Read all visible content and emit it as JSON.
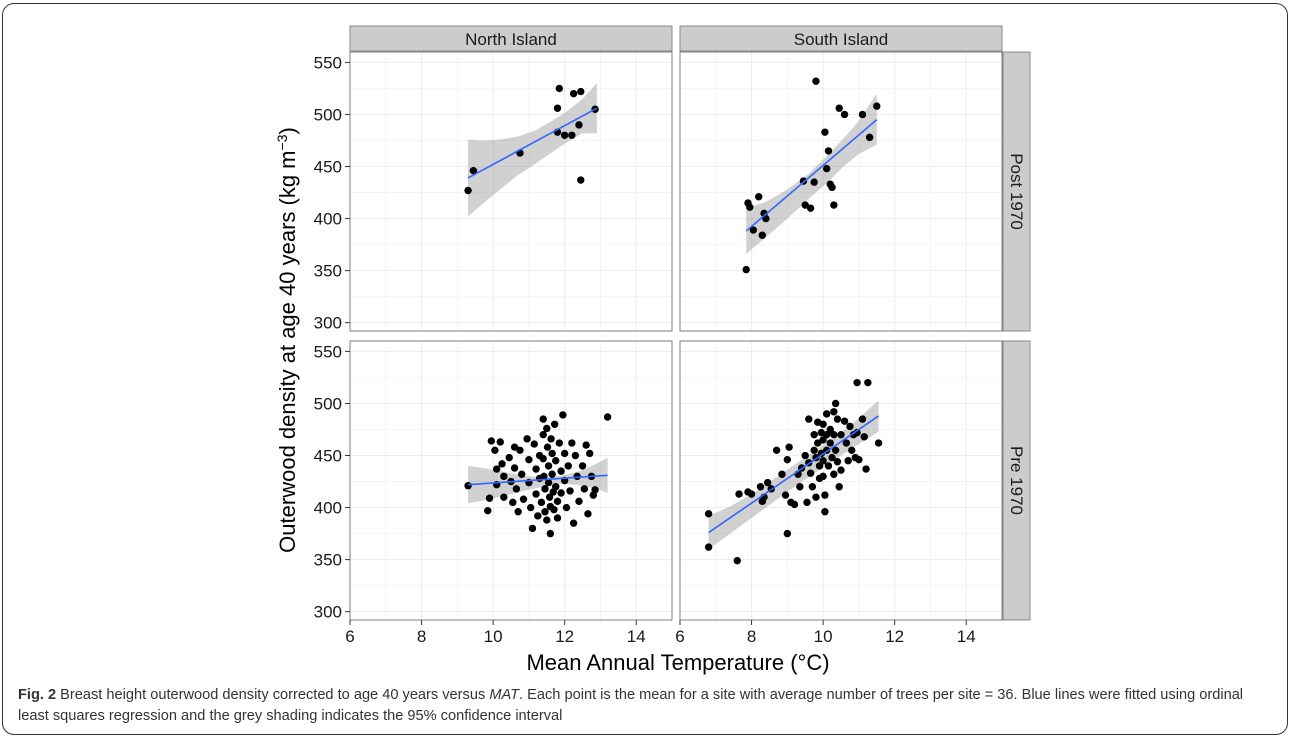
{
  "chart_data": {
    "type": "scatter",
    "layout": "facet_grid",
    "xlabel": "Mean Annual Temperature (°C)",
    "ylabel_main": "Outerwood density at age 40 years (kg m",
    "ylabel_sup": "−3",
    "ylabel_end": ")",
    "xlim": [
      6,
      15
    ],
    "ylim": [
      292,
      560
    ],
    "x_ticks": [
      6,
      8,
      10,
      12,
      14
    ],
    "x_tick_labels": [
      "6",
      "8",
      "10",
      "12",
      "14"
    ],
    "y_ticks": [
      300,
      350,
      400,
      450,
      500,
      550
    ],
    "y_tick_labels": [
      "300",
      "350",
      "400",
      "450",
      "500",
      "550"
    ],
    "grid": true,
    "column_labels": [
      "North Island",
      "South Island"
    ],
    "row_labels": [
      "Post 1970",
      "Pre 1970"
    ],
    "panels": [
      {
        "col": "North Island",
        "row": "Post 1970",
        "points": [
          [
            9.3,
            427
          ],
          [
            9.45,
            446
          ],
          [
            10.75,
            463
          ],
          [
            11.8,
            506
          ],
          [
            11.85,
            525
          ],
          [
            11.8,
            483
          ],
          [
            12.0,
            480
          ],
          [
            12.2,
            480
          ],
          [
            12.25,
            520
          ],
          [
            12.45,
            522
          ],
          [
            12.4,
            490
          ],
          [
            12.45,
            437
          ],
          [
            12.85,
            505
          ]
        ],
        "fit": {
          "x": [
            9.3,
            12.9
          ],
          "y": [
            439,
            506
          ]
        },
        "ci_upper": [
          [
            9.3,
            476
          ],
          [
            9.7,
            475
          ],
          [
            10.2,
            476
          ],
          [
            10.7,
            479
          ],
          [
            11.2,
            485
          ],
          [
            11.7,
            495
          ],
          [
            12.1,
            504
          ],
          [
            12.5,
            515
          ],
          [
            12.9,
            530
          ]
        ],
        "ci_lower": [
          [
            9.3,
            402
          ],
          [
            9.7,
            414
          ],
          [
            10.2,
            428
          ],
          [
            10.7,
            442
          ],
          [
            11.2,
            453
          ],
          [
            11.7,
            465
          ],
          [
            12.1,
            474
          ],
          [
            12.5,
            482
          ],
          [
            12.9,
            482
          ]
        ]
      },
      {
        "col": "South Island",
        "row": "Post 1970",
        "points": [
          [
            7.85,
            351
          ],
          [
            7.9,
            415
          ],
          [
            7.95,
            411
          ],
          [
            8.05,
            389
          ],
          [
            8.2,
            421
          ],
          [
            8.3,
            384
          ],
          [
            8.35,
            405
          ],
          [
            8.4,
            400
          ],
          [
            9.45,
            436
          ],
          [
            9.5,
            413
          ],
          [
            9.65,
            410
          ],
          [
            9.75,
            435
          ],
          [
            9.8,
            532
          ],
          [
            10.05,
            483
          ],
          [
            10.1,
            448
          ],
          [
            10.15,
            465
          ],
          [
            10.2,
            433
          ],
          [
            10.25,
            430
          ],
          [
            10.3,
            413
          ],
          [
            10.45,
            506
          ],
          [
            10.6,
            500
          ],
          [
            11.1,
            500
          ],
          [
            11.3,
            478
          ],
          [
            11.5,
            508
          ]
        ],
        "fit": {
          "x": [
            7.85,
            11.5
          ],
          "y": [
            388,
            495
          ]
        },
        "ci_upper": [
          [
            7.85,
            410
          ],
          [
            8.4,
            416
          ],
          [
            9.0,
            428
          ],
          [
            9.6,
            443
          ],
          [
            10.1,
            460
          ],
          [
            10.6,
            478
          ],
          [
            11.0,
            494
          ],
          [
            11.5,
            520
          ]
        ],
        "ci_lower": [
          [
            7.85,
            366
          ],
          [
            8.4,
            382
          ],
          [
            9.0,
            400
          ],
          [
            9.6,
            419
          ],
          [
            10.1,
            434
          ],
          [
            10.6,
            451
          ],
          [
            11.0,
            462
          ],
          [
            11.5,
            471
          ]
        ]
      },
      {
        "col": "North Island",
        "row": "Pre 1970",
        "points": [
          [
            9.3,
            421
          ],
          [
            9.85,
            397
          ],
          [
            9.9,
            409
          ],
          [
            9.95,
            464
          ],
          [
            10.05,
            455
          ],
          [
            10.1,
            437
          ],
          [
            10.1,
            422
          ],
          [
            10.2,
            463
          ],
          [
            10.25,
            442
          ],
          [
            10.3,
            430
          ],
          [
            10.3,
            410
          ],
          [
            10.45,
            448
          ],
          [
            10.5,
            425
          ],
          [
            10.55,
            405
          ],
          [
            10.6,
            458
          ],
          [
            10.6,
            438
          ],
          [
            10.65,
            418
          ],
          [
            10.7,
            396
          ],
          [
            10.75,
            455
          ],
          [
            10.8,
            432
          ],
          [
            10.85,
            408
          ],
          [
            10.95,
            466
          ],
          [
            11.0,
            446
          ],
          [
            11.0,
            424
          ],
          [
            11.05,
            400
          ],
          [
            11.1,
            380
          ],
          [
            11.15,
            461
          ],
          [
            11.2,
            437
          ],
          [
            11.2,
            413
          ],
          [
            11.25,
            392
          ],
          [
            11.3,
            450
          ],
          [
            11.3,
            428
          ],
          [
            11.35,
            405
          ],
          [
            11.4,
            485
          ],
          [
            11.4,
            470
          ],
          [
            11.4,
            447
          ],
          [
            11.42,
            430
          ],
          [
            11.45,
            418
          ],
          [
            11.45,
            396
          ],
          [
            11.5,
            388
          ],
          [
            11.5,
            476
          ],
          [
            11.52,
            458
          ],
          [
            11.55,
            440
          ],
          [
            11.55,
            424
          ],
          [
            11.58,
            410
          ],
          [
            11.6,
            401
          ],
          [
            11.6,
            375
          ],
          [
            11.62,
            466
          ],
          [
            11.65,
            452
          ],
          [
            11.65,
            432
          ],
          [
            11.68,
            415
          ],
          [
            11.7,
            398
          ],
          [
            11.72,
            480
          ],
          [
            11.75,
            445
          ],
          [
            11.75,
            420
          ],
          [
            11.8,
            406
          ],
          [
            11.8,
            390
          ],
          [
            11.85,
            462
          ],
          [
            11.9,
            435
          ],
          [
            11.9,
            414
          ],
          [
            11.95,
            489
          ],
          [
            12.0,
            452
          ],
          [
            12.0,
            426
          ],
          [
            12.05,
            400
          ],
          [
            12.1,
            440
          ],
          [
            12.15,
            416
          ],
          [
            12.2,
            462
          ],
          [
            12.25,
            385
          ],
          [
            12.3,
            450
          ],
          [
            12.35,
            430
          ],
          [
            12.4,
            406
          ],
          [
            12.5,
            440
          ],
          [
            12.55,
            418
          ],
          [
            12.6,
            460
          ],
          [
            12.65,
            394
          ],
          [
            12.7,
            452
          ],
          [
            12.75,
            430
          ],
          [
            12.8,
            412
          ],
          [
            12.85,
            417
          ],
          [
            13.2,
            487
          ]
        ],
        "fit": {
          "x": [
            9.3,
            13.2
          ],
          "y": [
            422,
            431
          ]
        },
        "ci_upper": [
          [
            9.3,
            440
          ],
          [
            9.9,
            437
          ],
          [
            10.5,
            433
          ],
          [
            11.0,
            430
          ],
          [
            11.5,
            429
          ],
          [
            12.0,
            431
          ],
          [
            12.5,
            436
          ],
          [
            13.0,
            444
          ],
          [
            13.2,
            448
          ]
        ],
        "ci_lower": [
          [
            9.3,
            404
          ],
          [
            9.9,
            408
          ],
          [
            10.5,
            413
          ],
          [
            11.0,
            417
          ],
          [
            11.5,
            421
          ],
          [
            12.0,
            423
          ],
          [
            12.5,
            421
          ],
          [
            13.0,
            417
          ],
          [
            13.2,
            414
          ]
        ]
      },
      {
        "col": "South Island",
        "row": "Pre 1970",
        "points": [
          [
            6.8,
            394
          ],
          [
            6.8,
            362
          ],
          [
            7.6,
            349
          ],
          [
            7.65,
            413
          ],
          [
            7.9,
            415
          ],
          [
            8.0,
            413
          ],
          [
            8.25,
            420
          ],
          [
            8.3,
            406
          ],
          [
            8.35,
            410
          ],
          [
            8.45,
            424
          ],
          [
            8.55,
            418
          ],
          [
            8.7,
            455
          ],
          [
            8.85,
            432
          ],
          [
            8.95,
            412
          ],
          [
            9.0,
            375
          ],
          [
            9.0,
            446
          ],
          [
            9.05,
            458
          ],
          [
            9.1,
            405
          ],
          [
            9.2,
            403
          ],
          [
            9.3,
            432
          ],
          [
            9.35,
            420
          ],
          [
            9.4,
            438
          ],
          [
            9.5,
            450
          ],
          [
            9.55,
            405
          ],
          [
            9.6,
            485
          ],
          [
            9.6,
            443
          ],
          [
            9.65,
            433
          ],
          [
            9.7,
            420
          ],
          [
            9.75,
            470
          ],
          [
            9.75,
            455
          ],
          [
            9.8,
            448
          ],
          [
            9.8,
            410
          ],
          [
            9.85,
            482
          ],
          [
            9.85,
            462
          ],
          [
            9.9,
            440
          ],
          [
            9.9,
            428
          ],
          [
            9.95,
            472
          ],
          [
            9.95,
            452
          ],
          [
            10.0,
            480
          ],
          [
            10.0,
            465
          ],
          [
            10.0,
            445
          ],
          [
            10.0,
            430
          ],
          [
            10.05,
            396
          ],
          [
            10.05,
            412
          ],
          [
            10.1,
            490
          ],
          [
            10.1,
            470
          ],
          [
            10.1,
            455
          ],
          [
            10.15,
            440
          ],
          [
            10.2,
            475
          ],
          [
            10.2,
            462
          ],
          [
            10.25,
            448
          ],
          [
            10.3,
            492
          ],
          [
            10.3,
            470
          ],
          [
            10.3,
            432
          ],
          [
            10.35,
            500
          ],
          [
            10.35,
            455
          ],
          [
            10.4,
            485
          ],
          [
            10.4,
            444
          ],
          [
            10.45,
            420
          ],
          [
            10.5,
            470
          ],
          [
            10.5,
            436
          ],
          [
            10.6,
            483
          ],
          [
            10.65,
            462
          ],
          [
            10.7,
            445
          ],
          [
            10.75,
            478
          ],
          [
            10.8,
            455
          ],
          [
            10.85,
            470
          ],
          [
            10.9,
            448
          ],
          [
            10.95,
            472
          ],
          [
            10.95,
            520
          ],
          [
            11.0,
            446
          ],
          [
            11.1,
            485
          ],
          [
            11.15,
            468
          ],
          [
            11.2,
            437
          ],
          [
            11.25,
            520
          ],
          [
            11.55,
            462
          ]
        ],
        "fit": {
          "x": [
            6.8,
            11.55
          ],
          "y": [
            376,
            488
          ]
        },
        "ci_upper": [
          [
            6.8,
            392
          ],
          [
            7.4,
            401
          ],
          [
            8.0,
            413
          ],
          [
            8.6,
            427
          ],
          [
            9.2,
            441
          ],
          [
            9.8,
            455
          ],
          [
            10.4,
            469
          ],
          [
            11.0,
            486
          ],
          [
            11.55,
            503
          ]
        ],
        "ci_lower": [
          [
            6.8,
            360
          ],
          [
            7.4,
            375
          ],
          [
            8.0,
            390
          ],
          [
            8.6,
            405
          ],
          [
            9.2,
            420
          ],
          [
            9.8,
            434
          ],
          [
            10.4,
            448
          ],
          [
            11.0,
            461
          ],
          [
            11.55,
            473
          ]
        ]
      }
    ]
  },
  "caption": {
    "label": "Fig. 2",
    "text_1": " Breast height outerwood density corrected to age 40 years versus ",
    "text_em": "MAT",
    "text_2": ". Each point is the mean for a site with average number of trees per site = 36. Blue lines were fitted using ordinal least squares regression and the grey shading indicates the 95% confidence interval"
  },
  "colors": {
    "point": "#000000",
    "fit_line": "#3366ff",
    "ci_fill": "#999999",
    "strip_bg": "#cccccc",
    "grid": "#ececec"
  }
}
